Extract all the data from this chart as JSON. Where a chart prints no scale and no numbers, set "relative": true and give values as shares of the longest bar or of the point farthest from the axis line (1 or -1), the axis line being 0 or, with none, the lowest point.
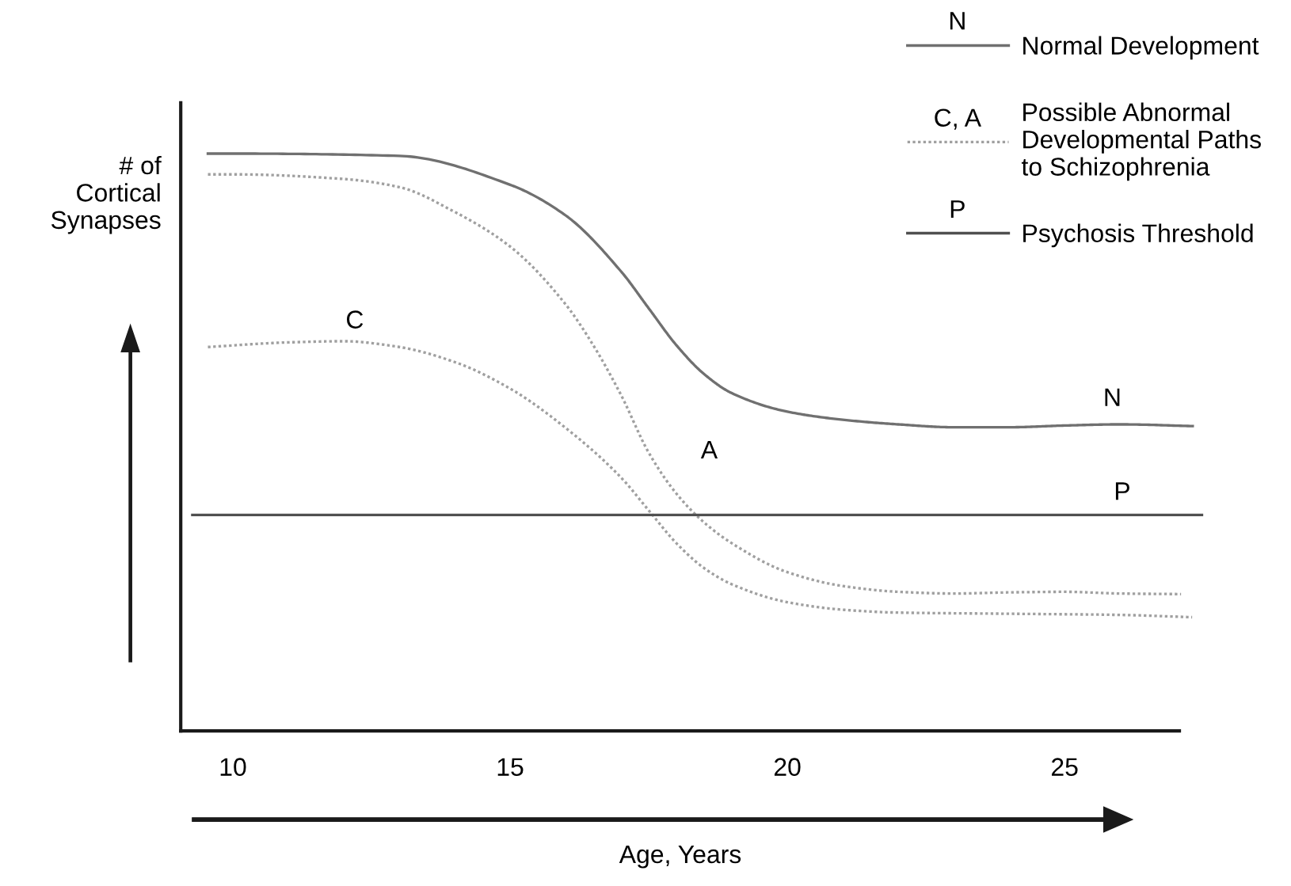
{
  "chart_data": {
    "type": "line",
    "relative": true,
    "xlabel": "Age, Years",
    "ylabel": "# of\nCortical\nSynapses",
    "xlim": [
      9.06,
      27.5
    ],
    "xticks": [
      10,
      15,
      20,
      25
    ],
    "legend": "top right",
    "grid": false,
    "series": [
      {
        "name": "Normal Development",
        "color": "#707070",
        "line_style": "solid",
        "x": [
          9.55,
          10,
          13,
          15,
          16,
          17,
          17.5,
          18,
          18.5,
          19,
          20,
          21,
          22,
          23,
          24,
          25,
          26,
          27.31
        ],
        "values": [
          1.0,
          1.0,
          0.996,
          0.946,
          0.893,
          0.796,
          0.732,
          0.668,
          0.618,
          0.585,
          0.553,
          0.539,
          0.531,
          0.526,
          0.526,
          0.529,
          0.531,
          0.528
        ]
      },
      {
        "name": "Possible Abnormal\nDevelopmental Paths\nto Schizophrenia",
        "color": "#a0a0a0",
        "line_style": "dotted",
        "x": [
          9.55,
          10,
          12,
          13,
          14,
          15,
          16,
          16.5,
          17,
          17.5,
          18,
          18.5,
          19,
          20,
          21,
          22,
          23,
          24,
          25,
          26,
          27.1
        ],
        "values": [
          0.964,
          0.964,
          0.956,
          0.942,
          0.899,
          0.839,
          0.739,
          0.668,
          0.582,
          0.482,
          0.411,
          0.361,
          0.325,
          0.275,
          0.251,
          0.241,
          0.238,
          0.24,
          0.241,
          0.238,
          0.237
        ]
      },
      {
        "color": "#a0a0a0",
        "line_style": "dotted",
        "x": [
          9.55,
          11,
          12,
          13,
          14,
          15,
          16,
          17,
          17.5,
          18,
          18.5,
          19,
          20,
          21,
          22,
          24,
          26,
          27.3
        ],
        "values": [
          0.665,
          0.673,
          0.675,
          0.665,
          0.639,
          0.593,
          0.525,
          0.439,
          0.382,
          0.325,
          0.282,
          0.254,
          0.223,
          0.21,
          0.205,
          0.203,
          0.201,
          0.197
        ]
      },
      {
        "name": "Psychosis Threshold",
        "color": "#505050",
        "line_style": "solid",
        "x": [
          9.27,
          27.49
        ],
        "values": [
          0.374,
          0.374
        ]
      }
    ],
    "annotations": [
      {
        "text": "N",
        "x": 26,
        "y": 0.531
      },
      {
        "text": "C",
        "x": 12,
        "y": 0.675
      },
      {
        "text": "A",
        "x": 17.5,
        "y": 0.482
      },
      {
        "text": "P",
        "x": 26.1,
        "y": 0.374
      },
      "N",
      "C, A",
      "P"
    ]
  }
}
